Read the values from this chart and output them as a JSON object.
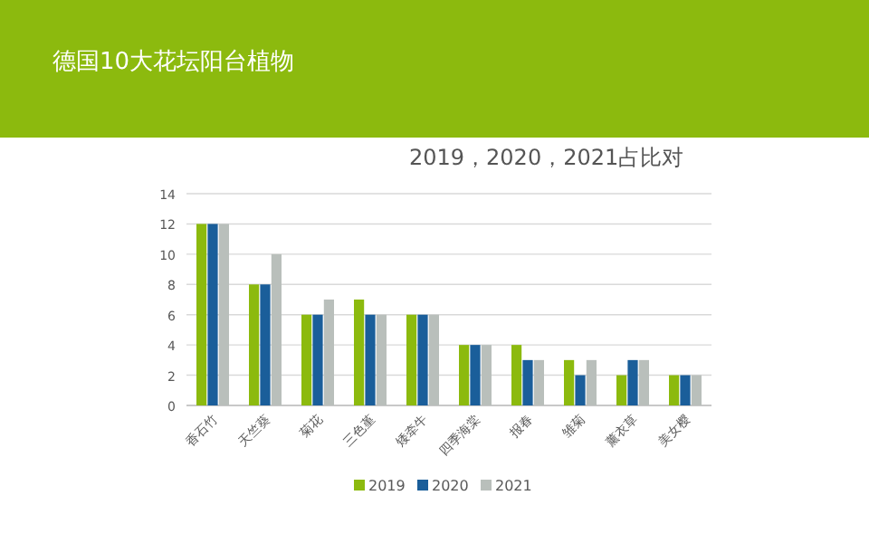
{
  "chart_data": {
    "type": "bar",
    "title": "德国10大花坛阳台植物",
    "subtitle": "2019，2020，2021占比对",
    "categories": [
      "香石竹",
      "天竺葵",
      "菊花",
      "三色堇",
      "矮牵牛",
      "四季海棠",
      "报春",
      "雏菊",
      "薰衣草",
      "美女樱"
    ],
    "series": [
      {
        "name": "2019",
        "color": "#8cba0e",
        "values": [
          12,
          8,
          6,
          7,
          6,
          4,
          4,
          3,
          2,
          2
        ]
      },
      {
        "name": "2020",
        "color": "#1a5e9a",
        "values": [
          12,
          8,
          6,
          6,
          6,
          4,
          3,
          2,
          3,
          2
        ]
      },
      {
        "name": "2021",
        "color": "#b9bfbb",
        "values": [
          12,
          10,
          7,
          6,
          6,
          4,
          3,
          3,
          3,
          2
        ]
      }
    ],
    "ylim": [
      0,
      14
    ],
    "yticks": [
      0,
      2,
      4,
      6,
      8,
      10,
      12,
      14
    ],
    "grid": "y",
    "legend": "bottom"
  }
}
